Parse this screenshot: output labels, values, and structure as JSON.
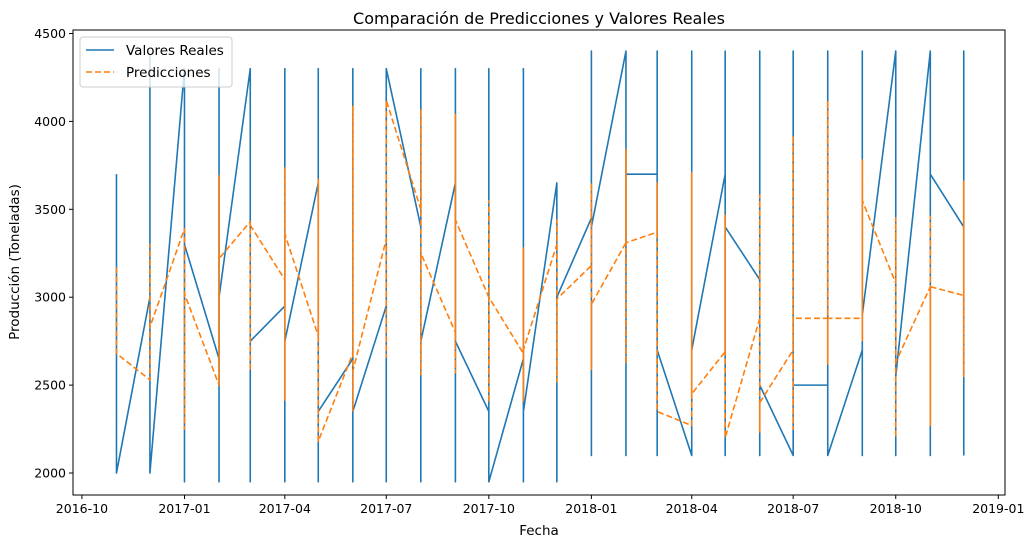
{
  "chart_data": {
    "type": "line",
    "title": "Comparación de Predicciones y Valores Reales",
    "xlabel": "Fecha",
    "ylabel": "Producción (Toneladas)",
    "xlim": [
      "2016-09-23",
      "2019-01-07"
    ],
    "ylim": [
      1875,
      4520
    ],
    "x_ticks": [
      "2016-10",
      "2017-01",
      "2017-04",
      "2017-07",
      "2017-10",
      "2018-01",
      "2018-04",
      "2018-07",
      "2018-10",
      "2019-01"
    ],
    "y_ticks": [
      2000,
      2500,
      3000,
      3500,
      4000,
      4500
    ],
    "legend_position": "upper left",
    "series": [
      {
        "name": "Valores Reales",
        "color": "#1f77b4",
        "style": "solid",
        "points": [
          [
            "2016-11-01",
            3700
          ],
          [
            "2016-11-01",
            2000
          ],
          [
            "2016-12-01",
            3000
          ],
          [
            "2016-12-01",
            4380
          ],
          [
            "2016-12-01",
            2000
          ],
          [
            "2017-01-01",
            4300
          ],
          [
            "2017-01-01",
            1950
          ],
          [
            "2017-01-01",
            3300
          ],
          [
            "2017-02-01",
            2650
          ],
          [
            "2017-02-01",
            4300
          ],
          [
            "2017-02-01",
            1950
          ],
          [
            "2017-02-01",
            3000
          ],
          [
            "2017-03-01",
            4300
          ],
          [
            "2017-03-01",
            1950
          ],
          [
            "2017-03-01",
            2750
          ],
          [
            "2017-04-01",
            2950
          ],
          [
            "2017-04-01",
            4300
          ],
          [
            "2017-04-01",
            1950
          ],
          [
            "2017-04-01",
            2750
          ],
          [
            "2017-05-01",
            3650
          ],
          [
            "2017-05-01",
            4300
          ],
          [
            "2017-05-01",
            1950
          ],
          [
            "2017-05-01",
            2350
          ],
          [
            "2017-06-01",
            2650
          ],
          [
            "2017-06-01",
            4300
          ],
          [
            "2017-06-01",
            1950
          ],
          [
            "2017-06-01",
            2350
          ],
          [
            "2017-07-01",
            2950
          ],
          [
            "2017-07-01",
            1950
          ],
          [
            "2017-07-01",
            4300
          ],
          [
            "2017-08-01",
            3400
          ],
          [
            "2017-08-01",
            4300
          ],
          [
            "2017-08-01",
            1950
          ],
          [
            "2017-08-01",
            2750
          ],
          [
            "2017-09-01",
            3650
          ],
          [
            "2017-09-01",
            4300
          ],
          [
            "2017-09-01",
            1950
          ],
          [
            "2017-09-01",
            2750
          ],
          [
            "2017-10-01",
            2350
          ],
          [
            "2017-10-01",
            4300
          ],
          [
            "2017-10-01",
            1950
          ],
          [
            "2017-11-01",
            2650
          ],
          [
            "2017-11-01",
            4300
          ],
          [
            "2017-11-01",
            1950
          ],
          [
            "2017-11-01",
            2350
          ],
          [
            "2017-12-01",
            3650
          ],
          [
            "2017-12-01",
            1950
          ],
          [
            "2017-12-01",
            3000
          ],
          [
            "2018-01-01",
            3450
          ],
          [
            "2018-01-01",
            4400
          ],
          [
            "2018-01-01",
            2100
          ],
          [
            "2018-01-01",
            3400
          ],
          [
            "2018-02-01",
            4400
          ],
          [
            "2018-02-01",
            2100
          ],
          [
            "2018-02-01",
            3700
          ],
          [
            "2018-03-01",
            3700
          ],
          [
            "2018-03-01",
            4400
          ],
          [
            "2018-03-01",
            2100
          ],
          [
            "2018-03-01",
            2700
          ],
          [
            "2018-04-01",
            2100
          ],
          [
            "2018-04-01",
            4400
          ],
          [
            "2018-04-01",
            2700
          ],
          [
            "2018-05-01",
            3700
          ],
          [
            "2018-05-01",
            2100
          ],
          [
            "2018-05-01",
            4400
          ],
          [
            "2018-05-01",
            3400
          ],
          [
            "2018-06-01",
            3100
          ],
          [
            "2018-06-01",
            4400
          ],
          [
            "2018-06-01",
            2100
          ],
          [
            "2018-06-01",
            2500
          ],
          [
            "2018-07-01",
            2100
          ],
          [
            "2018-07-01",
            4400
          ],
          [
            "2018-07-01",
            2500
          ],
          [
            "2018-08-01",
            2500
          ],
          [
            "2018-08-01",
            4400
          ],
          [
            "2018-08-01",
            2100
          ],
          [
            "2018-09-01",
            2700
          ],
          [
            "2018-09-01",
            4400
          ],
          [
            "2018-09-01",
            2100
          ],
          [
            "2018-09-01",
            2900
          ],
          [
            "2018-10-01",
            4400
          ],
          [
            "2018-10-01",
            2100
          ],
          [
            "2018-10-01",
            2550
          ],
          [
            "2018-11-01",
            4400
          ],
          [
            "2018-11-01",
            2100
          ],
          [
            "2018-11-01",
            3700
          ],
          [
            "2018-12-01",
            3400
          ],
          [
            "2018-12-01",
            4400
          ],
          [
            "2018-12-01",
            2100
          ]
        ]
      },
      {
        "name": "Predicciones",
        "color": "#ff7f0e",
        "style": "dashed",
        "points": [
          [
            "2016-11-01",
            3170
          ],
          [
            "2016-11-01",
            2680
          ],
          [
            "2016-12-01",
            2530
          ],
          [
            "2016-12-01",
            3300
          ],
          [
            "2016-12-01",
            2830
          ],
          [
            "2017-01-01",
            3390
          ],
          [
            "2017-01-01",
            2250
          ],
          [
            "2017-01-01",
            3020
          ],
          [
            "2017-02-01",
            2500
          ],
          [
            "2017-02-01",
            3690
          ],
          [
            "2017-02-01",
            2500
          ],
          [
            "2017-02-01",
            3220
          ],
          [
            "2017-03-01",
            3430
          ],
          [
            "2017-03-01",
            2580
          ],
          [
            "2017-03-01",
            3410
          ],
          [
            "2017-04-01",
            3100
          ],
          [
            "2017-04-01",
            3740
          ],
          [
            "2017-04-01",
            2410
          ],
          [
            "2017-04-01",
            3360
          ],
          [
            "2017-05-01",
            2780
          ],
          [
            "2017-05-01",
            3670
          ],
          [
            "2017-05-01",
            2180
          ],
          [
            "2017-06-01",
            2680
          ],
          [
            "2017-06-01",
            4090
          ],
          [
            "2017-06-01",
            2350
          ],
          [
            "2017-06-01",
            2580
          ],
          [
            "2017-07-01",
            3330
          ],
          [
            "2017-07-01",
            2660
          ],
          [
            "2017-07-01",
            4120
          ],
          [
            "2017-08-01",
            3500
          ],
          [
            "2017-08-01",
            4070
          ],
          [
            "2017-08-01",
            2560
          ],
          [
            "2017-08-01",
            3250
          ],
          [
            "2017-09-01",
            2800
          ],
          [
            "2017-09-01",
            4040
          ],
          [
            "2017-09-01",
            2570
          ],
          [
            "2017-09-01",
            3440
          ],
          [
            "2017-10-01",
            3000
          ],
          [
            "2017-10-01",
            3550
          ],
          [
            "2017-10-01",
            2400
          ],
          [
            "2017-10-01",
            3000
          ],
          [
            "2017-11-01",
            2680
          ],
          [
            "2017-11-01",
            3280
          ],
          [
            "2017-11-01",
            2410
          ],
          [
            "2017-11-01",
            2700
          ],
          [
            "2017-12-01",
            3300
          ],
          [
            "2017-12-01",
            3440
          ],
          [
            "2017-12-01",
            2520
          ],
          [
            "2017-12-01",
            2990
          ],
          [
            "2018-01-01",
            3180
          ],
          [
            "2018-01-01",
            3650
          ],
          [
            "2018-01-01",
            2590
          ],
          [
            "2018-01-01",
            2960
          ],
          [
            "2018-02-01",
            3310
          ],
          [
            "2018-02-01",
            3840
          ],
          [
            "2018-02-01",
            2620
          ],
          [
            "2018-02-01",
            3310
          ],
          [
            "2018-03-01",
            3370
          ],
          [
            "2018-03-01",
            3650
          ],
          [
            "2018-03-01",
            2350
          ],
          [
            "2018-04-01",
            2270
          ],
          [
            "2018-04-01",
            3710
          ],
          [
            "2018-04-01",
            2450
          ],
          [
            "2018-05-01",
            2690
          ],
          [
            "2018-05-01",
            3470
          ],
          [
            "2018-05-01",
            2200
          ],
          [
            "2018-06-01",
            2880
          ],
          [
            "2018-06-01",
            3580
          ],
          [
            "2018-06-01",
            2230
          ],
          [
            "2018-06-01",
            2400
          ],
          [
            "2018-07-01",
            2700
          ],
          [
            "2018-07-01",
            3920
          ],
          [
            "2018-07-01",
            2250
          ],
          [
            "2018-07-01",
            2880
          ],
          [
            "2018-08-01",
            2880
          ],
          [
            "2018-08-01",
            4120
          ],
          [
            "2018-08-01",
            2620
          ],
          [
            "2018-08-01",
            2880
          ],
          [
            "2018-09-01",
            2880
          ],
          [
            "2018-09-01",
            3780
          ],
          [
            "2018-09-01",
            2750
          ],
          [
            "2018-09-01",
            3550
          ],
          [
            "2018-10-01",
            3080
          ],
          [
            "2018-10-01",
            3450
          ],
          [
            "2018-10-01",
            2200
          ],
          [
            "2018-10-01",
            2630
          ],
          [
            "2018-11-01",
            3060
          ],
          [
            "2018-11-01",
            3460
          ],
          [
            "2018-11-01",
            2270
          ],
          [
            "2018-11-01",
            3060
          ],
          [
            "2018-12-01",
            3010
          ],
          [
            "2018-12-01",
            3660
          ],
          [
            "2018-12-01",
            2550
          ],
          [
            "2018-12-01",
            3010
          ]
        ]
      }
    ]
  }
}
